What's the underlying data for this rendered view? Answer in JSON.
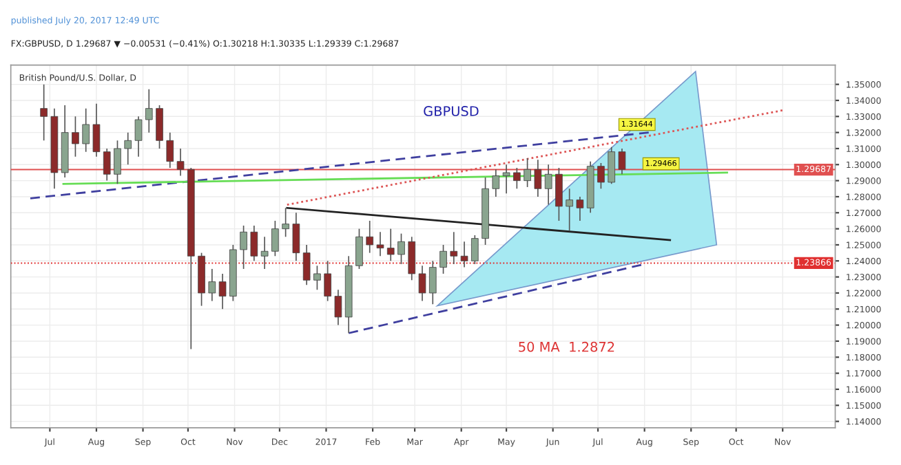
{
  "chart_data": {
    "type": "candlestick",
    "title": "FX:GBPUSD, D 1.29687 ▼ −0.00531 (−0.41%) O:1.30218 H:1.30335 L:1.29339 C:1.29687",
    "subtitle": "British Pound/U.S. Dollar, D",
    "x": [
      "2016-06-27",
      "2016-07-04",
      "2016-07-11",
      "2016-07-18",
      "2016-07-25",
      "2016-08-01",
      "2016-08-08",
      "2016-08-15",
      "2016-08-22",
      "2016-08-29",
      "2016-09-05",
      "2016-09-12",
      "2016-09-19",
      "2016-09-26",
      "2016-10-03",
      "2016-10-10",
      "2016-10-17",
      "2016-10-24",
      "2016-10-31",
      "2016-11-07",
      "2016-11-14",
      "2016-11-21",
      "2016-11-28",
      "2016-12-05",
      "2016-12-12",
      "2016-12-19",
      "2016-12-26",
      "2017-01-02",
      "2017-01-09",
      "2017-01-16",
      "2017-01-23",
      "2017-01-30",
      "2017-02-06",
      "2017-02-13",
      "2017-02-20",
      "2017-02-27",
      "2017-03-06",
      "2017-03-13",
      "2017-03-20",
      "2017-03-27",
      "2017-04-03",
      "2017-04-10",
      "2017-04-17",
      "2017-04-24",
      "2017-05-01",
      "2017-05-08",
      "2017-05-15",
      "2017-05-22",
      "2017-05-29",
      "2017-06-05",
      "2017-06-12",
      "2017-06-19",
      "2017-06-26",
      "2017-07-03",
      "2017-07-10",
      "2017-07-17"
    ],
    "ohlc": [
      [
        1.335,
        1.35,
        1.315,
        1.33
      ],
      [
        1.33,
        1.335,
        1.285,
        1.295
      ],
      [
        1.295,
        1.337,
        1.292,
        1.32
      ],
      [
        1.32,
        1.33,
        1.305,
        1.313
      ],
      [
        1.313,
        1.335,
        1.308,
        1.325
      ],
      [
        1.325,
        1.338,
        1.305,
        1.308
      ],
      [
        1.308,
        1.31,
        1.29,
        1.294
      ],
      [
        1.294,
        1.315,
        1.288,
        1.31
      ],
      [
        1.31,
        1.32,
        1.3,
        1.315
      ],
      [
        1.315,
        1.33,
        1.305,
        1.328
      ],
      [
        1.328,
        1.347,
        1.32,
        1.335
      ],
      [
        1.335,
        1.337,
        1.31,
        1.315
      ],
      [
        1.315,
        1.32,
        1.298,
        1.302
      ],
      [
        1.302,
        1.31,
        1.293,
        1.297
      ],
      [
        1.297,
        1.298,
        1.185,
        1.243
      ],
      [
        1.243,
        1.245,
        1.212,
        1.22
      ],
      [
        1.22,
        1.235,
        1.215,
        1.227
      ],
      [
        1.227,
        1.232,
        1.21,
        1.218
      ],
      [
        1.218,
        1.25,
        1.215,
        1.247
      ],
      [
        1.247,
        1.262,
        1.235,
        1.258
      ],
      [
        1.258,
        1.262,
        1.24,
        1.243
      ],
      [
        1.243,
        1.255,
        1.235,
        1.246
      ],
      [
        1.246,
        1.265,
        1.243,
        1.26
      ],
      [
        1.26,
        1.273,
        1.255,
        1.263
      ],
      [
        1.263,
        1.27,
        1.24,
        1.245
      ],
      [
        1.245,
        1.25,
        1.225,
        1.228
      ],
      [
        1.228,
        1.237,
        1.222,
        1.232
      ],
      [
        1.232,
        1.24,
        1.215,
        1.218
      ],
      [
        1.218,
        1.222,
        1.2,
        1.205
      ],
      [
        1.205,
        1.243,
        1.195,
        1.237
      ],
      [
        1.237,
        1.26,
        1.235,
        1.255
      ],
      [
        1.255,
        1.265,
        1.245,
        1.25
      ],
      [
        1.25,
        1.258,
        1.243,
        1.248
      ],
      [
        1.248,
        1.26,
        1.24,
        1.244
      ],
      [
        1.244,
        1.257,
        1.238,
        1.252
      ],
      [
        1.252,
        1.255,
        1.228,
        1.232
      ],
      [
        1.232,
        1.237,
        1.215,
        1.22
      ],
      [
        1.22,
        1.24,
        1.213,
        1.236
      ],
      [
        1.236,
        1.25,
        1.232,
        1.246
      ],
      [
        1.246,
        1.258,
        1.238,
        1.243
      ],
      [
        1.243,
        1.252,
        1.236,
        1.24
      ],
      [
        1.24,
        1.256,
        1.238,
        1.254
      ],
      [
        1.254,
        1.292,
        1.25,
        1.285
      ],
      [
        1.285,
        1.297,
        1.28,
        1.293
      ],
      [
        1.293,
        1.3,
        1.282,
        1.295
      ],
      [
        1.295,
        1.298,
        1.285,
        1.29
      ],
      [
        1.29,
        1.304,
        1.286,
        1.297
      ],
      [
        1.297,
        1.303,
        1.28,
        1.285
      ],
      [
        1.285,
        1.3,
        1.275,
        1.294
      ],
      [
        1.294,
        1.298,
        1.265,
        1.274
      ],
      [
        1.274,
        1.285,
        1.259,
        1.278
      ],
      [
        1.278,
        1.28,
        1.265,
        1.273
      ],
      [
        1.273,
        1.302,
        1.27,
        1.299
      ],
      [
        1.299,
        1.301,
        1.285,
        1.289
      ],
      [
        1.289,
        1.311,
        1.288,
        1.308
      ],
      [
        1.308,
        1.31,
        1.294,
        1.297
      ]
    ],
    "series": [
      {
        "type": "area",
        "color": "#a6e9f2",
        "x": [
          "2017-03-16",
          "2017-09-04",
          "2017-09-18",
          "2017-03-16"
        ],
        "values": [
          1.212,
          1.358,
          1.25,
          1.212
        ]
      },
      {
        "type": "line",
        "color": "#3f3f9f",
        "line_style": "dashed",
        "x": [
          "2016-06-18",
          "2017-08-04"
        ],
        "values": [
          1.279,
          1.32
        ]
      },
      {
        "type": "line",
        "color": "#66dd55",
        "line_style": "solid",
        "x": [
          "2016-07-10",
          "2017-09-25"
        ],
        "values": [
          1.288,
          1.295
        ]
      },
      {
        "type": "line",
        "color": "#222222",
        "line_style": "solid",
        "x": [
          "2016-12-06",
          "2017-08-18"
        ],
        "values": [
          1.273,
          1.253
        ]
      },
      {
        "type": "line",
        "color": "#dd5555",
        "line_style": "dotted",
        "x": [
          "2016-12-06",
          "2017-11-02"
        ],
        "values": [
          1.275,
          1.334
        ]
      },
      {
        "type": "line",
        "color": "#3f3f9f",
        "line_style": "dashed",
        "x": [
          "2017-01-16",
          "2017-08-01"
        ],
        "values": [
          1.195,
          1.238
        ]
      }
    ],
    "ref_lines": [
      {
        "axis": "y",
        "value": 1.29687,
        "label": "1.29687",
        "color": "#e05050",
        "line_style": "solid"
      },
      {
        "axis": "y",
        "value": 1.23866,
        "label": "1.23866",
        "color": "#e03030",
        "line_style": "dotted"
      }
    ],
    "annotations": [
      "published July 20, 2017 12:49 UTC",
      "GBPUSD",
      "50 MA  1.2872",
      {
        "text": "1.31644",
        "x": "2017-07-27",
        "y": 1.325
      },
      {
        "text": "1.29466",
        "x": "2017-08-12",
        "y": 1.3005
      }
    ],
    "xlim": [
      "2016-06-05",
      "2017-12-06"
    ],
    "xticks": [
      {
        "value": "2016-07-01",
        "label": "Jul"
      },
      {
        "value": "2016-08-01",
        "label": "Aug"
      },
      {
        "value": "2016-09-01",
        "label": "Sep"
      },
      {
        "value": "2016-10-01",
        "label": "Oct"
      },
      {
        "value": "2016-11-01",
        "label": "Nov"
      },
      {
        "value": "2016-12-01",
        "label": "Dec"
      },
      {
        "value": "2017-01-01",
        "label": "2017"
      },
      {
        "value": "2017-02-01",
        "label": "Feb"
      },
      {
        "value": "2017-03-01",
        "label": "Mar"
      },
      {
        "value": "2017-04-01",
        "label": "Apr"
      },
      {
        "value": "2017-05-01",
        "label": "May"
      },
      {
        "value": "2017-06-01",
        "label": "Jun"
      },
      {
        "value": "2017-07-01",
        "label": "Jul"
      },
      {
        "value": "2017-08-01",
        "label": "Aug"
      },
      {
        "value": "2017-09-01",
        "label": "Sep"
      },
      {
        "value": "2017-10-01",
        "label": "Oct"
      },
      {
        "value": "2017-11-01",
        "label": "Nov"
      }
    ],
    "ylim": [
      1.136,
      1.362
    ],
    "yticks": [
      {
        "value": 1.14,
        "label": "1.14000"
      },
      {
        "value": 1.15,
        "label": "1.15000"
      },
      {
        "value": 1.16,
        "label": "1.16000"
      },
      {
        "value": 1.17,
        "label": "1.17000"
      },
      {
        "value": 1.18,
        "label": "1.18000"
      },
      {
        "value": 1.19,
        "label": "1.19000"
      },
      {
        "value": 1.2,
        "label": "1.20000"
      },
      {
        "value": 1.21,
        "label": "1.21000"
      },
      {
        "value": 1.22,
        "label": "1.22000"
      },
      {
        "value": 1.23,
        "label": "1.23000"
      },
      {
        "value": 1.24,
        "label": "1.24000"
      },
      {
        "value": 1.25,
        "label": "1.25000"
      },
      {
        "value": 1.26,
        "label": "1.26000"
      },
      {
        "value": 1.27,
        "label": "1.27000"
      },
      {
        "value": 1.28,
        "label": "1.28000"
      },
      {
        "value": 1.29,
        "label": "1.29000"
      },
      {
        "value": 1.3,
        "label": "1.30000"
      },
      {
        "value": 1.31,
        "label": "1.31000"
      },
      {
        "value": 1.32,
        "label": "1.32000"
      },
      {
        "value": 1.33,
        "label": "1.33000"
      },
      {
        "value": 1.34,
        "label": "1.34000"
      },
      {
        "value": 1.35,
        "label": "1.35000"
      }
    ],
    "grid": true,
    "legend": false
  }
}
